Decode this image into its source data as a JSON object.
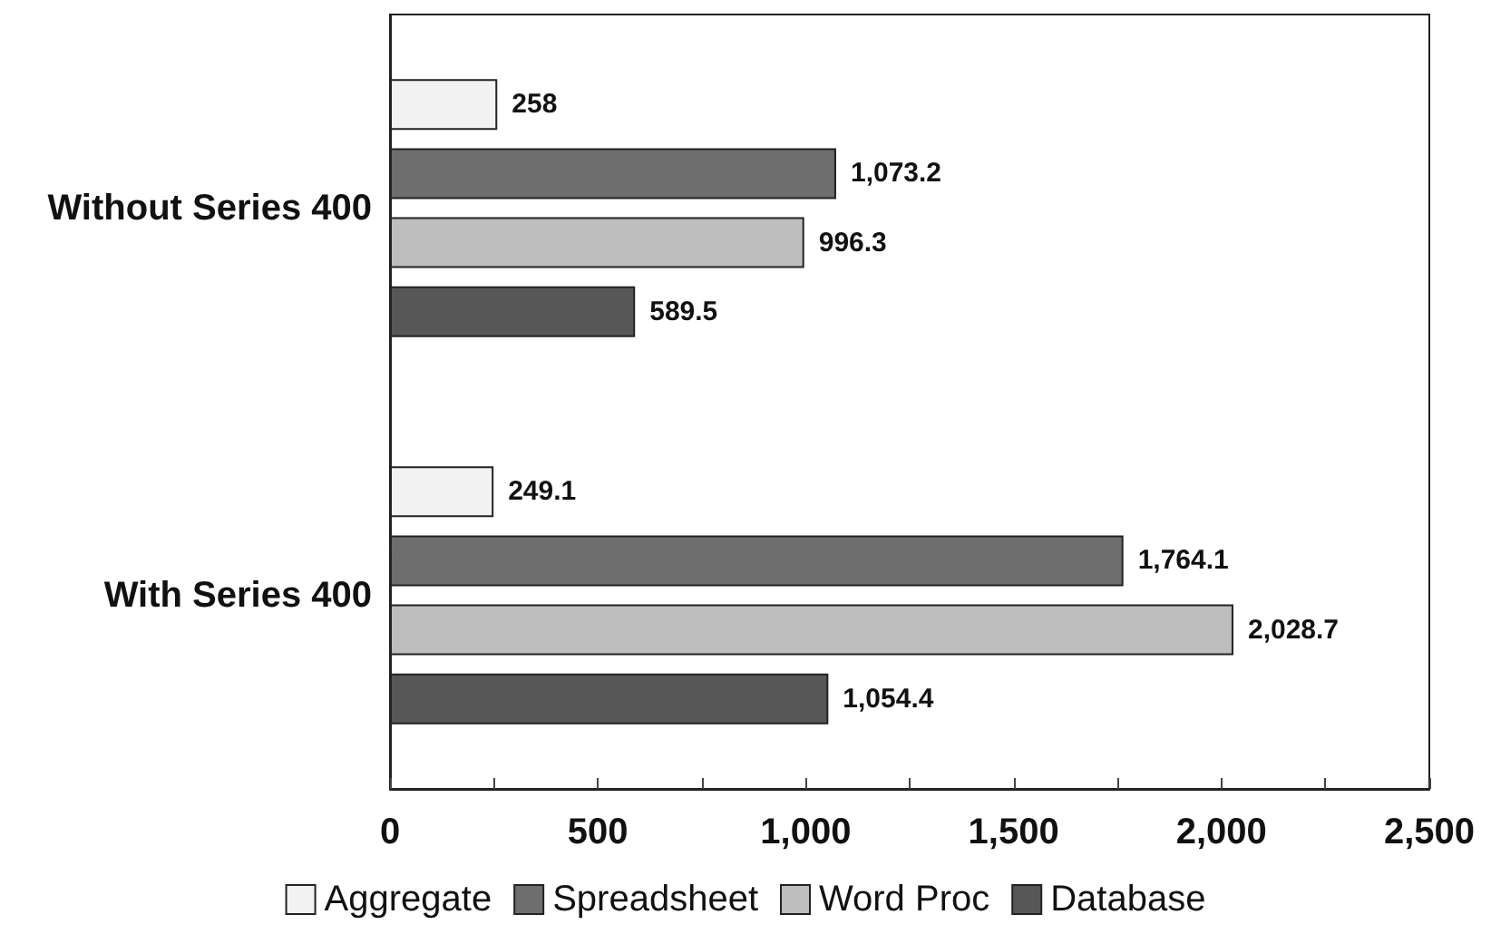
{
  "chart_data": {
    "type": "bar",
    "orientation": "horizontal",
    "categories": [
      "Without Series 400",
      "With Series 400"
    ],
    "series": [
      {
        "name": "Aggregate",
        "color": "#f2f2f2",
        "values": [
          258,
          249.1
        ],
        "value_labels": [
          "258",
          "249.1"
        ]
      },
      {
        "name": "Spreadsheet",
        "color": "#6e6e6e",
        "values": [
          1073.2,
          1764.1
        ],
        "value_labels": [
          "1,073.2",
          "1,764.1"
        ]
      },
      {
        "name": "Word Proc",
        "color": "#bdbdbd",
        "values": [
          996.3,
          2028.7
        ],
        "value_labels": [
          "996.3",
          "2,028.7"
        ]
      },
      {
        "name": "Database",
        "color": "#575757",
        "values": [
          589.5,
          1054.4
        ],
        "value_labels": [
          "589.5",
          "1,054.4"
        ]
      }
    ],
    "xlim": [
      0,
      2500
    ],
    "xticks": [
      0,
      {
        "value": 250,
        "label": null
      },
      500,
      {
        "value": 750,
        "label": null
      },
      {
        "value": 1000,
        "label": "1,000"
      },
      {
        "value": 1250,
        "label": null
      },
      {
        "value": 1500,
        "label": "1,500"
      },
      {
        "value": 1750,
        "label": null
      },
      {
        "value": 2000,
        "label": "2,000"
      },
      {
        "value": 2250,
        "label": null
      },
      {
        "value": 2500,
        "label": "2,500"
      }
    ],
    "grid": false,
    "legend": "bottom"
  }
}
